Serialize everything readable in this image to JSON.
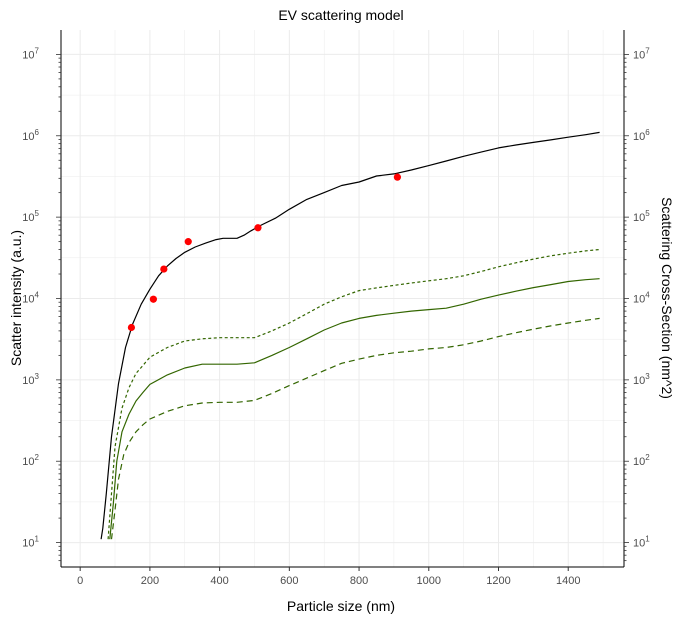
{
  "chart_data": {
    "type": "line",
    "title": "EV scattering model",
    "xlabel": "Particle size (nm)",
    "ylabel": "Scatter intensity (a.u.)",
    "y2label": "Scattering Cross-Section (nm^2)",
    "xlim": [
      -55,
      1560
    ],
    "ylim_log10": [
      0.7,
      7.3
    ],
    "y_scale": "log",
    "grid": true,
    "x_ticks": [
      0,
      200,
      400,
      600,
      800,
      1000,
      1200,
      1400
    ],
    "x_tick_labels": [
      "0",
      "200",
      "400",
      "600",
      "800",
      "1000",
      "1200",
      "1400"
    ],
    "y_tick_exponents": [
      1,
      2,
      3,
      4,
      5,
      6,
      7
    ],
    "y_tick_base": "10",
    "colors": {
      "reference": "#000000",
      "model": "#336600",
      "measured": "#ff0000",
      "grid": "#ebebeb"
    },
    "series": [
      {
        "style": "solid",
        "color": "#000000",
        "x": [
          60,
          65,
          75,
          90,
          110,
          130,
          150,
          175,
          200,
          225,
          250,
          275,
          300,
          330,
          360,
          390,
          410,
          430,
          450,
          470,
          490,
          520,
          560,
          600,
          650,
          700,
          750,
          800,
          850,
          900,
          950,
          1000,
          1050,
          1100,
          1150,
          1200,
          1250,
          1300,
          1350,
          1400,
          1450,
          1490
        ],
        "y": [
          11,
          15,
          40,
          200,
          900,
          2500,
          4800,
          8500,
          13000,
          19000,
          25000,
          31000,
          37000,
          43000,
          48000,
          53000,
          55000,
          55000,
          55000,
          60000,
          68000,
          80000,
          97000,
          125000,
          165000,
          200000,
          245000,
          270000,
          320000,
          340000,
          380000,
          430000,
          490000,
          560000,
          630000,
          710000,
          770000,
          830000,
          890000,
          960000,
          1030000,
          1100000
        ]
      },
      {
        "style": "dashed-short",
        "color": "#336600",
        "x": [
          80,
          90,
          100,
          120,
          140,
          160,
          180,
          200,
          250,
          300,
          350,
          400,
          450,
          500,
          550,
          600,
          650,
          700,
          750,
          800,
          850,
          900,
          950,
          1000,
          1050,
          1100,
          1150,
          1200,
          1250,
          1300,
          1350,
          1400,
          1450,
          1490
        ],
        "y": [
          11,
          40,
          150,
          450,
          800,
          1200,
          1500,
          1900,
          2500,
          3000,
          3200,
          3300,
          3300,
          3300,
          4000,
          5000,
          6500,
          8500,
          10500,
          12500,
          13500,
          14500,
          15500,
          16500,
          17500,
          19000,
          21500,
          24500,
          27500,
          30500,
          33500,
          36000,
          38500,
          40000
        ]
      },
      {
        "style": "solid",
        "color": "#336600",
        "x": [
          85,
          95,
          105,
          120,
          140,
          160,
          180,
          200,
          250,
          300,
          350,
          400,
          450,
          500,
          550,
          600,
          650,
          700,
          750,
          800,
          850,
          900,
          950,
          1000,
          1050,
          1100,
          1150,
          1200,
          1250,
          1300,
          1350,
          1400,
          1450,
          1490
        ],
        "y": [
          11,
          30,
          100,
          230,
          380,
          550,
          700,
          880,
          1150,
          1400,
          1560,
          1560,
          1560,
          1620,
          2000,
          2500,
          3200,
          4100,
          5000,
          5700,
          6200,
          6600,
          7000,
          7300,
          7600,
          8500,
          9800,
          11000,
          12300,
          13600,
          14800,
          16200,
          17000,
          17500
        ]
      },
      {
        "style": "dashed",
        "color": "#336600",
        "x": [
          90,
          100,
          110,
          125,
          140,
          160,
          180,
          200,
          250,
          300,
          350,
          400,
          450,
          500,
          550,
          600,
          650,
          700,
          750,
          800,
          850,
          900,
          950,
          1000,
          1050,
          1100,
          1150,
          1200,
          1250,
          1300,
          1350,
          1400,
          1450,
          1490
        ],
        "y": [
          11,
          25,
          60,
          120,
          170,
          230,
          280,
          330,
          410,
          480,
          520,
          530,
          530,
          560,
          680,
          850,
          1050,
          1300,
          1600,
          1800,
          2000,
          2150,
          2250,
          2400,
          2500,
          2700,
          3000,
          3400,
          3800,
          4200,
          4600,
          5000,
          5400,
          5700
        ]
      },
      {
        "style": "points",
        "color": "#ff0000",
        "x": [
          147,
          210,
          240,
          310,
          510,
          910
        ],
        "y": [
          4400,
          9800,
          23000,
          50000,
          74000,
          310000
        ]
      }
    ]
  }
}
